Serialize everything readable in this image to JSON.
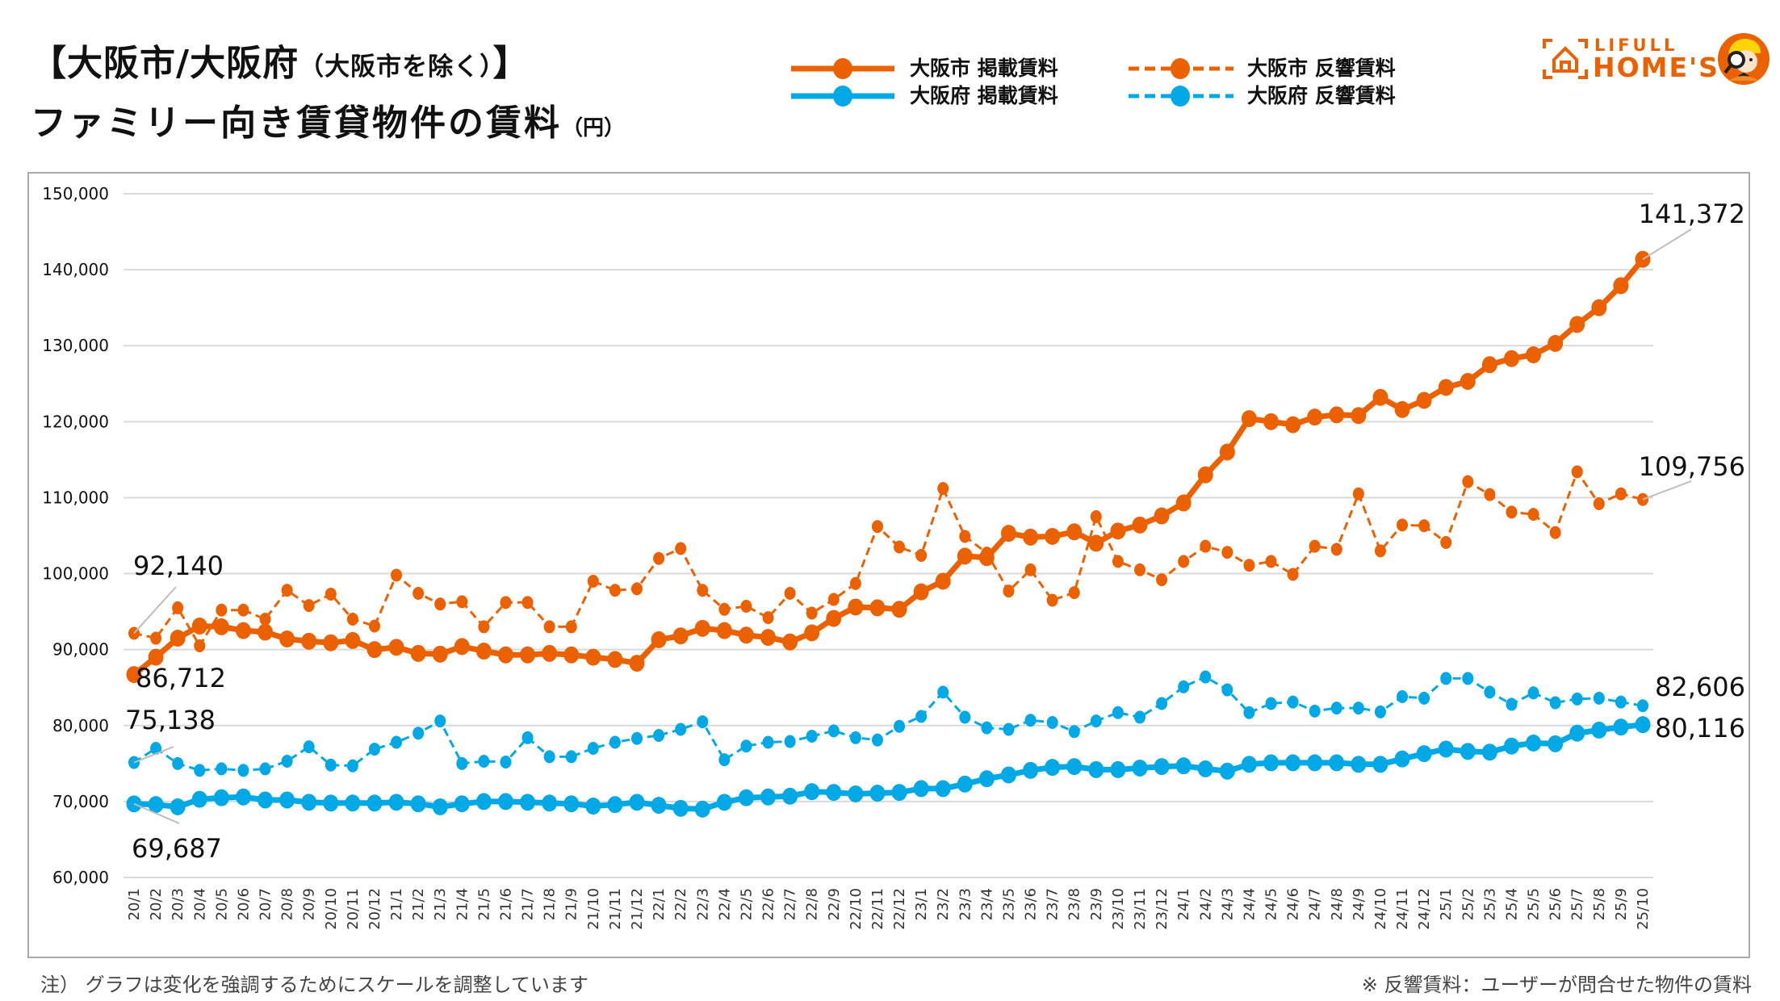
{
  "header": {
    "title_main": "【大阪市/大阪府",
    "title_sub": "（大阪市を除く）",
    "title_close": "】",
    "title_line2": "ファミリー向き賃貸物件の賃料",
    "title_unit": "（円）"
  },
  "logo": {
    "line1": "LIFULL",
    "line2": "HOME'S",
    "icon": "house-bracket-icon",
    "mascot": "mascot-magnifier-icon",
    "color": "#EB6100"
  },
  "legend": [
    {
      "label": "大阪市 掲載賃料",
      "color": "#EB6100",
      "style": "solid"
    },
    {
      "label": "大阪府 掲載賃料",
      "color": "#00A9E6",
      "style": "solid"
    },
    {
      "label": "大阪市 反響賃料",
      "color": "#EB6100",
      "style": "dashed"
    },
    {
      "label": "大阪府 反響賃料",
      "color": "#00A9E6",
      "style": "dashed"
    }
  ],
  "notes": {
    "left": "注） グラフは変化を強調するためにスケールを調整しています",
    "right": "※ 反響賃料：ユーザーが問合せた物件の賃料"
  },
  "chart_data": {
    "type": "line",
    "title": "【大阪市/大阪府（大阪市を除く）】ファミリー向き賃貸物件の賃料（円）",
    "xlabel": "",
    "ylabel": "",
    "ylim": [
      60000,
      150000
    ],
    "yticks": [
      60000,
      70000,
      80000,
      90000,
      100000,
      110000,
      120000,
      130000,
      140000,
      150000
    ],
    "ytick_labels": [
      "60,000",
      "70,000",
      "80,000",
      "90,000",
      "100,000",
      "110,000",
      "120,000",
      "130,000",
      "140,000",
      "150,000"
    ],
    "grid": true,
    "legend_position": "top",
    "categories": [
      "20/1",
      "20/2",
      "20/3",
      "20/4",
      "20/5",
      "20/6",
      "20/7",
      "20/8",
      "20/9",
      "20/10",
      "20/11",
      "20/12",
      "21/1",
      "21/2",
      "21/3",
      "21/4",
      "21/5",
      "21/6",
      "21/7",
      "21/8",
      "21/9",
      "21/10",
      "21/11",
      "21/12",
      "22/1",
      "22/2",
      "22/3",
      "22/4",
      "22/5",
      "22/6",
      "22/7",
      "22/8",
      "22/9",
      "22/10",
      "22/11",
      "22/12",
      "23/1",
      "23/2",
      "23/3",
      "23/4",
      "23/5",
      "23/6",
      "23/7",
      "23/8",
      "23/9",
      "23/10",
      "23/11",
      "23/12",
      "24/1",
      "24/2",
      "24/3",
      "24/4",
      "24/5",
      "24/6",
      "24/7",
      "24/8",
      "24/9",
      "24/10",
      "24/11",
      "24/12",
      "25/1",
      "25/2",
      "25/3",
      "25/4",
      "25/5",
      "25/6",
      "25/7",
      "25/8",
      "25/9",
      "25/10"
    ],
    "series": [
      {
        "name": "大阪市 反響賃料",
        "color": "#EB6100",
        "style": "dashed",
        "values": [
          92140,
          91500,
          95500,
          90500,
          95200,
          95200,
          94000,
          97800,
          95800,
          97300,
          94000,
          93100,
          99800,
          97400,
          96000,
          96300,
          93000,
          96200,
          96200,
          93000,
          93000,
          99000,
          97800,
          98000,
          102000,
          103300,
          97800,
          95300,
          95700,
          94200,
          97400,
          94800,
          96600,
          98700,
          106200,
          103500,
          102400,
          111200,
          104900,
          102700,
          97700,
          100500,
          96500,
          97500,
          107500,
          101600,
          100500,
          99200,
          101600,
          103600,
          102800,
          101100,
          101600,
          99900,
          103600,
          103200,
          110500,
          103000,
          106400,
          106300,
          104100,
          112100,
          110400,
          108100,
          107800,
          105400,
          113400,
          109200,
          110500,
          109756
        ]
      },
      {
        "name": "大阪府 反響賃料",
        "color": "#00A9E6",
        "style": "dashed",
        "values": [
          75138,
          77000,
          75000,
          74100,
          74300,
          74100,
          74300,
          75300,
          77200,
          74800,
          74700,
          76900,
          77800,
          79000,
          80600,
          75000,
          75300,
          75200,
          78400,
          75900,
          75900,
          77000,
          77800,
          78300,
          78700,
          79500,
          80500,
          75500,
          77300,
          77800,
          77900,
          78600,
          79300,
          78400,
          78100,
          79900,
          81200,
          84400,
          81100,
          79700,
          79500,
          80700,
          80400,
          79200,
          80600,
          81700,
          81100,
          82900,
          85100,
          86400,
          84700,
          81700,
          82900,
          83100,
          81900,
          82300,
          82300,
          81800,
          83800,
          83600,
          86200,
          86200,
          84400,
          82800,
          84300,
          83000,
          83500,
          83600,
          83100,
          82606
        ]
      },
      {
        "name": "大阪市 掲載賃料",
        "color": "#EB6100",
        "style": "solid",
        "values": [
          86712,
          89000,
          91500,
          93100,
          93000,
          92500,
          92300,
          91400,
          91100,
          90900,
          91200,
          90000,
          90300,
          89500,
          89400,
          90400,
          89800,
          89300,
          89300,
          89500,
          89300,
          89000,
          88700,
          88200,
          91300,
          91800,
          92800,
          92500,
          91900,
          91600,
          91000,
          92200,
          94100,
          95600,
          95500,
          95300,
          97600,
          99000,
          102300,
          102100,
          105300,
          104800,
          104900,
          105500,
          104000,
          105600,
          106400,
          107600,
          109300,
          113000,
          116000,
          120400,
          120000,
          119600,
          120600,
          120900,
          120800,
          123200,
          121600,
          122800,
          124500,
          125300,
          127500,
          128300,
          128800,
          130300,
          132800,
          135000,
          137900,
          141372
        ]
      },
      {
        "name": "大阪府 掲載賃料",
        "color": "#00A9E6",
        "style": "solid",
        "values": [
          69687,
          69600,
          69300,
          70300,
          70500,
          70600,
          70200,
          70200,
          69900,
          69800,
          69800,
          69800,
          69900,
          69700,
          69300,
          69700,
          70000,
          70000,
          69900,
          69800,
          69700,
          69400,
          69600,
          69900,
          69500,
          69100,
          69000,
          69900,
          70500,
          70600,
          70700,
          71300,
          71200,
          71000,
          71100,
          71200,
          71700,
          71700,
          72300,
          73000,
          73500,
          74100,
          74500,
          74600,
          74200,
          74200,
          74400,
          74600,
          74700,
          74300,
          74000,
          74900,
          75100,
          75100,
          75100,
          75100,
          74900,
          74900,
          75600,
          76300,
          76900,
          76600,
          76500,
          77300,
          77700,
          77600,
          79000,
          79400,
          79800,
          80116
        ]
      }
    ],
    "annotations": [
      {
        "series": "大阪市 反響賃料",
        "at": "20/1",
        "text": "92,140"
      },
      {
        "series": "大阪市 掲載賃料",
        "at": "20/1",
        "text": "86,712"
      },
      {
        "series": "大阪府 反響賃料",
        "at": "20/1",
        "text": "75,138"
      },
      {
        "series": "大阪府 掲載賃料",
        "at": "20/1",
        "text": "69,687"
      },
      {
        "series": "大阪市 掲載賃料",
        "at": "25/10",
        "text": "141,372"
      },
      {
        "series": "大阪市 反響賃料",
        "at": "25/10",
        "text": "109,756"
      },
      {
        "series": "大阪府 反響賃料",
        "at": "25/10",
        "text": "82,606"
      },
      {
        "series": "大阪府 掲載賃料",
        "at": "25/10",
        "text": "80,116"
      }
    ]
  }
}
